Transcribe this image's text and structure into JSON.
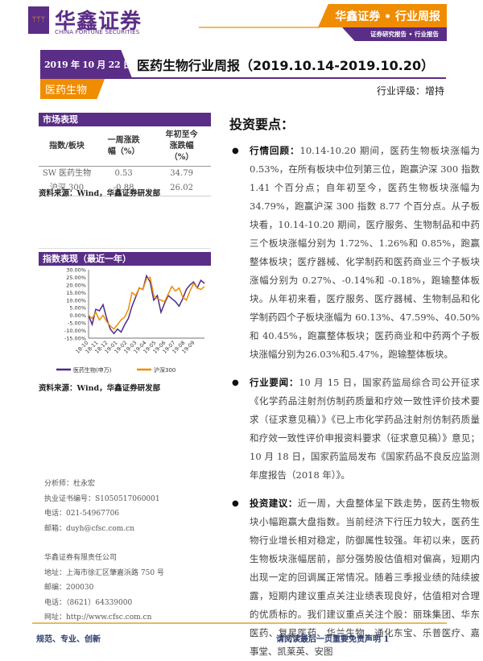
{
  "header": {
    "logo_cn": "华鑫证券",
    "logo_en": "CHINA FORTUNE SECURITIES",
    "banner": "华鑫证券 • 行业周报",
    "sub_banner": "证券研究报告 • 行业报告"
  },
  "report": {
    "date": "2019 年 10 月 22 日",
    "title": "医药生物行业周报（2019.10.14-2019.10.20）",
    "sector": "医药生物",
    "rating": "行业评级：增持"
  },
  "market": {
    "title": "市场表现",
    "columns": [
      "指数/板块",
      "一周涨跌幅（%）",
      "年初至今涨跌幅（%）"
    ],
    "rows": [
      [
        "SW 医药生物",
        "0.53",
        "34.79"
      ],
      [
        "沪深 300",
        "-0.88",
        "26.02"
      ]
    ],
    "source": "资料来源：Wind，华鑫证券研发部"
  },
  "chart_section": {
    "title": "指数表现（最近一年）",
    "source": "资料来源：Wind，华鑫证券研发部"
  },
  "chart_data": {
    "type": "line",
    "title": "",
    "x_ticks": [
      "18-10",
      "18-11",
      "18-12",
      "19-01",
      "19-02",
      "19-03",
      "19-04",
      "19-05",
      "19-06",
      "19-07",
      "19-08",
      "19-09"
    ],
    "y_ticks": [
      "30.00%",
      "25.00%",
      "20.00%",
      "15.00%",
      "10.00%",
      "5.00%",
      "0.00%",
      "-5.00%",
      "-10.00%",
      "-15.00%"
    ],
    "ylim": [
      -15,
      30
    ],
    "series": [
      {
        "name": "医药生物(申万)",
        "color": "#4b2a8a",
        "values": [
          0,
          -6,
          4,
          3,
          7,
          -2,
          -9,
          -12,
          -9,
          -11,
          -6,
          -2,
          6,
          12,
          18,
          17,
          26,
          22,
          10,
          13,
          2,
          8,
          13,
          11,
          9,
          6,
          11,
          17,
          20,
          22,
          18,
          23,
          21
        ]
      },
      {
        "name": "沪深300",
        "color": "#f08c00",
        "values": [
          0,
          -2,
          2,
          -3,
          0,
          -4,
          -7,
          -9,
          -6,
          -3,
          -1,
          4,
          15,
          13,
          18,
          17,
          24,
          25,
          13,
          11,
          10,
          9,
          14,
          19,
          16,
          18,
          12,
          10,
          16,
          21,
          18,
          17,
          19
        ]
      }
    ],
    "legend": "bottom"
  },
  "key_points": {
    "title": "投资要点：",
    "items": [
      {
        "label": "行情回顾：",
        "text": "10.14-10.20 期间，医药生物板块涨幅为 0.53%，在所有板块中位列第三位，跑赢沪深 300 指数 1.41 个百分点；自年初至今，医药生物板块涨幅为 34.79%，跑赢沪深 300 指数 8.77 个百分点。从子板块看，10.14-10.20 期间，医疗服务、生物制品和中药三个板块涨幅分别为 1.72%、1.26%和 0.85%，跑赢整体板块；医疗器械、化学制药和医药商业三个子板块涨幅分别为 0.27%、-0.14%和 -0.18%，跑输整体板块。从年初来看，医疗服务、医疗器械、生物制品和化学制药四个子板块涨幅为 60.13%、47.59%、40.50%和 40.45%，跑赢整体板块；医药商业和中药两个子板块涨幅分别为26.03%和5.47%，跑输整体板块。"
      },
      {
        "label": "行业要闻：",
        "text": "10 月 15 日，国家药监局综合司公开征求《化学药品注射剂仿制药质量和疗效一致性评价技术要求（征求意见稿）》《已上市化学药品注射剂仿制药质量和疗效一致性评价申报资料要求（征求意见稿）》意见；10 月 18 日，国家药监局发布《国家药品不良反应监测年度报告（2018 年）》。"
      },
      {
        "label": "投资建议：",
        "text": "近一周，大盘整体呈下跌走势，医药生物板块小幅跑赢大盘指数。当前经济下行压力较大，医药生物行业增长相对稳定，防御属性较强。年初以来，医药生物板块涨幅居前，部分强势股估值相对偏高，短期内出现一定的回调属正常情况。随着三季报业绩的陆续披露，短期内建议重点关注业绩表现良好，估值相对合理的优质标的。我们建议重点关注个股：丽珠集团、华东医药、复星医药、华兰生物、通化东宝、乐普医疗、嘉事堂、凯莱英、安图"
      }
    ]
  },
  "analyst": [
    "分析师：杜永宏",
    "执业证书编号：S1050517060001",
    "电话：021-54967706",
    "邮箱：duyh@cfsc.com.cn"
  ],
  "company": [
    "华鑫证券有限责任公司",
    "地址：上海市徐汇区肇嘉浜路 750 号",
    "邮编：200030",
    "电话：（8621）64339000",
    "网址：http://www.cfsc.com.cn"
  ],
  "footer": {
    "left": "规范、专业、创新",
    "right": "请阅读最后一页重要免责声明 1"
  }
}
